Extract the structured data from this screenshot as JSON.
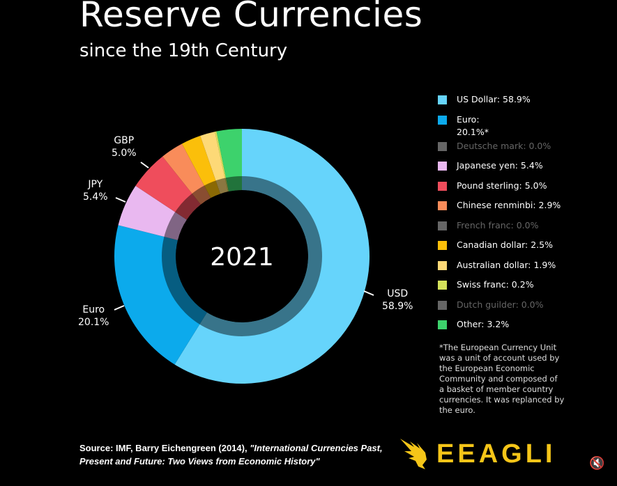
{
  "title": "Reserve Currencies",
  "subtitle": "since the 19th Century",
  "chart_data": {
    "type": "pie",
    "variant": "donut",
    "center_label": "2021",
    "slices": [
      {
        "name": "US Dollar",
        "value": 58.9,
        "color": "#66d4fb"
      },
      {
        "name": "Euro",
        "value": 20.1,
        "color": "#0caaec"
      },
      {
        "name": "Japanese yen",
        "value": 5.4,
        "color": "#e9b8f0"
      },
      {
        "name": "Pound sterling",
        "value": 5.0,
        "color": "#ef4d5c"
      },
      {
        "name": "Chinese renminbi",
        "value": 2.9,
        "color": "#f98c5a"
      },
      {
        "name": "Canadian dollar",
        "value": 2.5,
        "color": "#fbbf0a"
      },
      {
        "name": "Australian dollar",
        "value": 1.9,
        "color": "#fdd977"
      },
      {
        "name": "Swiss franc",
        "value": 0.2,
        "color": "#d4e25b"
      },
      {
        "name": "Other",
        "value": 3.2,
        "color": "#3dd26c"
      }
    ],
    "slice_labels": [
      {
        "code": "USD",
        "pct": "58.9%"
      },
      {
        "code": "Euro",
        "pct": "20.1%"
      },
      {
        "code": "JPY",
        "pct": "5.4%"
      },
      {
        "code": "GBP",
        "pct": "5.0%"
      }
    ],
    "legend": [
      {
        "label": "US Dollar: 58.9%",
        "color": "#66d4fb",
        "dim": false
      },
      {
        "label": "Euro:",
        "label2": "20.1%*",
        "color": "#0caaec",
        "dim": false
      },
      {
        "label": "Deutsche mark: 0.0%",
        "color": "#666666",
        "dim": true
      },
      {
        "label": "Japanese yen: 5.4%",
        "color": "#e9b8f0",
        "dim": false
      },
      {
        "label": "Pound sterling: 5.0%",
        "color": "#ef4d5c",
        "dim": false
      },
      {
        "label": "Chinese renminbi: 2.9%",
        "color": "#f98c5a",
        "dim": false
      },
      {
        "label": "French franc: 0.0%",
        "color": "#666666",
        "dim": true
      },
      {
        "label": "Canadian dollar: 2.5%",
        "color": "#fbbf0a",
        "dim": false
      },
      {
        "label": "Australian dollar: 1.9%",
        "color": "#fdd977",
        "dim": false
      },
      {
        "label": "Swiss franc: 0.2%",
        "color": "#d4e25b",
        "dim": false
      },
      {
        "label": "Dutch guilder: 0.0%",
        "color": "#666666",
        "dim": true
      },
      {
        "label": "Other: 3.2%",
        "color": "#3dd26c",
        "dim": false
      }
    ],
    "legend_position": "right"
  },
  "note": "*The European Currency Unit was a unit of account used by the European Economic Community and composed of a basket of member country currencies. It was replanced by the euro.",
  "source": {
    "prefix": "Source: IMF, Barry Eichengreen (2014), ",
    "title": "\"International Currencies Past, Present and Future: Two Views from Economic History\""
  },
  "logo": {
    "text": "EEAGLI",
    "color": "#f5c518"
  },
  "mute_icon": "speaker-muted-icon"
}
